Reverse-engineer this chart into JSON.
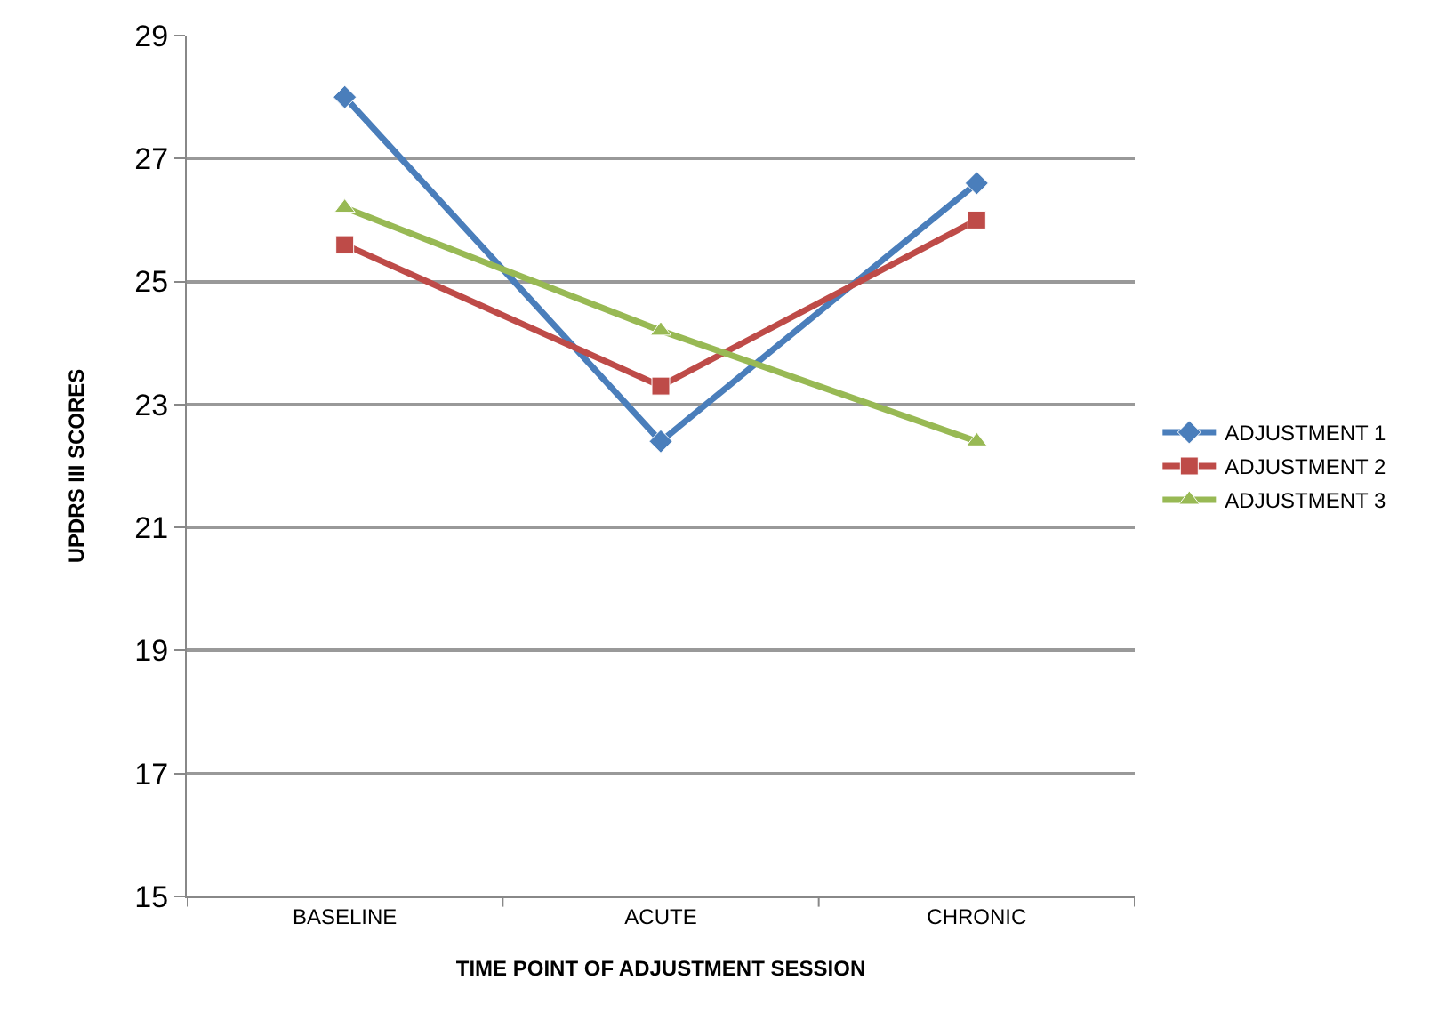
{
  "chart_data": {
    "type": "line",
    "xlabel": "TIME POINT OF ADJUSTMENT SESSION",
    "ylabel": "UPDRS III SCORES",
    "categories": [
      "BASELINE",
      "ACUTE",
      "CHRONIC"
    ],
    "series": [
      {
        "name": "ADJUSTMENT 1",
        "color": "#4a7ebb",
        "values": [
          28.0,
          22.4,
          26.6
        ],
        "marker": "diamond"
      },
      {
        "name": "ADJUSTMENT 2",
        "color": "#be4b48",
        "values": [
          25.6,
          23.3,
          26.0
        ],
        "marker": "square"
      },
      {
        "name": "ADJUSTMENT 3",
        "color": "#98b954",
        "values": [
          26.2,
          24.2,
          22.4
        ],
        "marker": "triangle"
      }
    ],
    "ylim": [
      15,
      29
    ],
    "yticks": [
      15,
      17,
      19,
      21,
      23,
      25,
      27,
      29
    ],
    "grid": "y",
    "legend": "right",
    "line_style": "solid"
  }
}
